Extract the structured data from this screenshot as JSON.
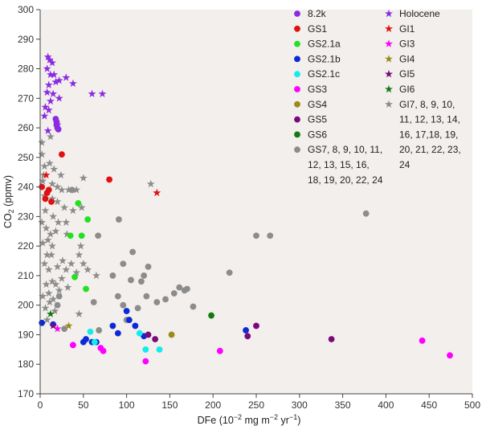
{
  "chart_data": {
    "type": "scatter",
    "title": "",
    "xlabel": {
      "pre": "DFe (10",
      "exp1": "−2",
      "mid": " mg m",
      "exp2": "−2",
      "mid2": " yr",
      "exp3": "−1",
      "post": ")"
    },
    "ylabel": {
      "pre": "CO",
      "sub": "2",
      "post": " (ppmv)"
    },
    "xlim": [
      0,
      500
    ],
    "ylim": [
      170,
      300
    ],
    "xticks": [
      0,
      50,
      100,
      150,
      200,
      250,
      300,
      350,
      400,
      450,
      500
    ],
    "yticks": [
      170,
      180,
      190,
      200,
      210,
      220,
      230,
      240,
      250,
      260,
      270,
      280,
      290,
      300
    ],
    "background": "#f2efec",
    "legend_position": "top-right",
    "series": [
      {
        "name": "8.2k",
        "marker": "circle",
        "color": "#8a2be2",
        "points": [
          [
            18,
            263
          ],
          [
            19,
            261
          ],
          [
            20,
            260
          ],
          [
            21,
            259.5
          ],
          [
            19,
            262
          ]
        ]
      },
      {
        "name": "GS1",
        "marker": "circle",
        "color": "#e01010",
        "points": [
          [
            25,
            251
          ],
          [
            80,
            242.5
          ],
          [
            2,
            240
          ],
          [
            8,
            238
          ],
          [
            10,
            239
          ],
          [
            6,
            236
          ],
          [
            13,
            235
          ]
        ]
      },
      {
        "name": "GS2.1a",
        "marker": "circle",
        "color": "#22e022",
        "points": [
          [
            44,
            234.5
          ],
          [
            55,
            229
          ],
          [
            35,
            223.5
          ],
          [
            48,
            223.5
          ],
          [
            40,
            209.5
          ],
          [
            53,
            205.5
          ]
        ]
      },
      {
        "name": "GS2.1b",
        "marker": "circle",
        "color": "#0a2ad8",
        "points": [
          [
            2,
            194
          ],
          [
            15,
            193.5
          ],
          [
            50,
            187.5
          ],
          [
            53,
            188.5
          ],
          [
            60,
            187.5
          ],
          [
            65,
            187.5
          ],
          [
            84,
            193
          ],
          [
            90,
            190.5
          ],
          [
            100,
            198
          ],
          [
            103,
            195
          ],
          [
            110,
            193
          ],
          [
            120,
            189.5
          ],
          [
            238,
            191.5
          ]
        ]
      },
      {
        "name": "GS2.1c",
        "marker": "circle",
        "color": "#11ecec",
        "points": [
          [
            58,
            191
          ],
          [
            63,
            187.5
          ],
          [
            115,
            190.5
          ],
          [
            122,
            185
          ],
          [
            138,
            185
          ]
        ]
      },
      {
        "name": "GS3",
        "marker": "circle",
        "color": "#ff00ff",
        "points": [
          [
            38,
            186.5
          ],
          [
            70,
            185.5
          ],
          [
            73,
            184.5
          ],
          [
            122,
            181
          ],
          [
            208,
            184.5
          ],
          [
            442,
            188
          ],
          [
            474,
            183
          ]
        ]
      },
      {
        "name": "GS4",
        "marker": "circle",
        "color": "#9b8a1a",
        "points": [
          [
            152,
            190
          ]
        ]
      },
      {
        "name": "GS5",
        "marker": "circle",
        "color": "#7a0a7a",
        "points": [
          [
            125,
            190
          ],
          [
            133,
            188.5
          ],
          [
            240,
            189.5
          ],
          [
            250,
            193
          ],
          [
            337,
            188.5
          ]
        ]
      },
      {
        "name": "GS6",
        "marker": "circle",
        "color": "#117a11",
        "points": [
          [
            198,
            196.5
          ]
        ]
      },
      {
        "name": "GS7, 8, 9, 10, 11, 12, 13, 15, 16, 18, 19, 20, 22, 24",
        "marker": "circle",
        "color": "#8c8c8c",
        "points": [
          [
            377,
            231
          ],
          [
            250,
            223.5
          ],
          [
            266,
            223.5
          ],
          [
            91,
            229
          ],
          [
            67,
            223.5
          ],
          [
            37,
            239
          ],
          [
            107,
            218
          ],
          [
            96,
            214
          ],
          [
            125,
            213
          ],
          [
            120,
            210
          ],
          [
            84,
            210
          ],
          [
            105,
            208.5
          ],
          [
            117,
            208
          ],
          [
            161,
            206
          ],
          [
            167,
            205
          ],
          [
            170,
            205.5
          ],
          [
            155,
            204
          ],
          [
            145,
            202
          ],
          [
            123,
            203
          ],
          [
            135,
            201
          ],
          [
            96,
            200
          ],
          [
            177,
            199.5
          ],
          [
            62,
            201
          ],
          [
            20,
            200
          ],
          [
            22,
            203
          ],
          [
            113,
            199
          ],
          [
            219,
            211
          ],
          [
            90,
            203
          ],
          [
            100,
            195
          ],
          [
            68,
            191.5
          ],
          [
            28,
            192
          ]
        ]
      },
      {
        "name": "Holocene",
        "marker": "star",
        "color": "#8a2be2",
        "points": [
          [
            9,
            284
          ],
          [
            11,
            283
          ],
          [
            14,
            282
          ],
          [
            8,
            280
          ],
          [
            12,
            278
          ],
          [
            16,
            278
          ],
          [
            22,
            276
          ],
          [
            18,
            275.5
          ],
          [
            30,
            277
          ],
          [
            38,
            275
          ],
          [
            10,
            274.5
          ],
          [
            8,
            272
          ],
          [
            15,
            271.5
          ],
          [
            22,
            270
          ],
          [
            12,
            269
          ],
          [
            60,
            271.5
          ],
          [
            72,
            271.5
          ],
          [
            6,
            267
          ],
          [
            10,
            266
          ],
          [
            5,
            264
          ],
          [
            20,
            261
          ],
          [
            9,
            259
          ]
        ]
      },
      {
        "name": "GI1",
        "marker": "star",
        "color": "#e01010",
        "points": [
          [
            135,
            238
          ],
          [
            7,
            244
          ]
        ]
      },
      {
        "name": "GI3",
        "marker": "star",
        "color": "#ff00ff",
        "points": [
          [
            20,
            192
          ]
        ]
      },
      {
        "name": "GI4",
        "marker": "star",
        "color": "#9b8a1a",
        "points": [
          [
            33,
            193
          ]
        ]
      },
      {
        "name": "GI5",
        "marker": "star",
        "color": "#7a0a7a",
        "points": [
          [
            15,
            193
          ]
        ]
      },
      {
        "name": "GI6",
        "marker": "star",
        "color": "#117a11",
        "points": [
          [
            12,
            197
          ]
        ]
      },
      {
        "name": "GI7, 8, 9, 10, 11, 12, 13, 14, 16, 17,18, 19, 20, 21, 22, 23, 24",
        "marker": "star",
        "color": "#8c8c8c",
        "points": [
          [
            2,
            255
          ],
          [
            12,
            257
          ],
          [
            2,
            251
          ],
          [
            5,
            247
          ],
          [
            11,
            248
          ],
          [
            16,
            246
          ],
          [
            24,
            244
          ],
          [
            4,
            244
          ],
          [
            3,
            242
          ],
          [
            14,
            241
          ],
          [
            20,
            240
          ],
          [
            25,
            239
          ],
          [
            33,
            239
          ],
          [
            42,
            239
          ],
          [
            50,
            243
          ],
          [
            128,
            241
          ],
          [
            5,
            237
          ],
          [
            14,
            236
          ],
          [
            20,
            235
          ],
          [
            28,
            233
          ],
          [
            38,
            232
          ],
          [
            48,
            233
          ],
          [
            6,
            232
          ],
          [
            15,
            230
          ],
          [
            21,
            228
          ],
          [
            30,
            228
          ],
          [
            2,
            228
          ],
          [
            7,
            226
          ],
          [
            12,
            224
          ],
          [
            18,
            225
          ],
          [
            3,
            221
          ],
          [
            9,
            222
          ],
          [
            14,
            220
          ],
          [
            31,
            224
          ],
          [
            47,
            220
          ],
          [
            8,
            217
          ],
          [
            13,
            217
          ],
          [
            26,
            215
          ],
          [
            36,
            214
          ],
          [
            45,
            217
          ],
          [
            55,
            212
          ],
          [
            65,
            210
          ],
          [
            5,
            214
          ],
          [
            10,
            212
          ],
          [
            20,
            213
          ],
          [
            30,
            212
          ],
          [
            42,
            211
          ],
          [
            50,
            214
          ],
          [
            7,
            207
          ],
          [
            14,
            208
          ],
          [
            18,
            207
          ],
          [
            25,
            209
          ],
          [
            32,
            206
          ],
          [
            3,
            203
          ],
          [
            10,
            204
          ],
          [
            15,
            202
          ],
          [
            22,
            205
          ],
          [
            6,
            199
          ],
          [
            11,
            201
          ],
          [
            17,
            198
          ],
          [
            45,
            197
          ],
          [
            8,
            195
          ]
        ]
      }
    ]
  }
}
